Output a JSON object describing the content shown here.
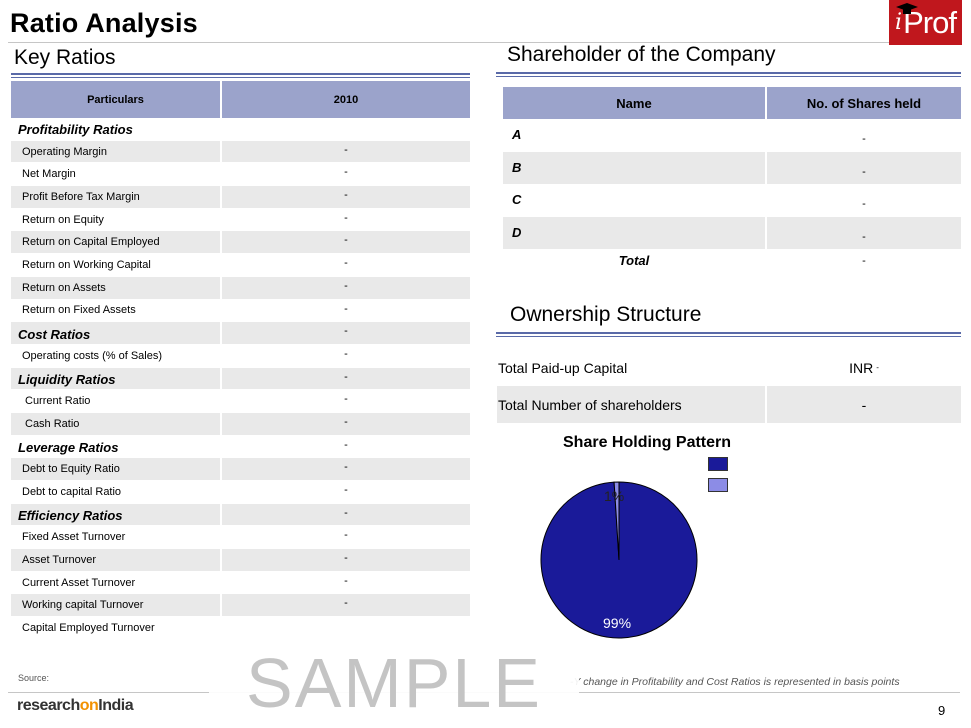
{
  "page": {
    "title": "Ratio Analysis",
    "logo_i": "i",
    "logo_prof": "Prof",
    "page_number": "9",
    "source_label": "Source:",
    "footnote": "-Y change in Profitability and Cost Ratios is represented in basis points",
    "sample_watermark": "SAMPLE",
    "brand_research": "research",
    "brand_on": "on",
    "brand_india": "India"
  },
  "key_ratios": {
    "section_title": "Key Ratios",
    "col_particulars": "Particulars",
    "col_year": "2010",
    "rows": [
      {
        "label": "Profitability Ratios",
        "value": "",
        "type": "cat"
      },
      {
        "label": "Operating Margin",
        "value": "-",
        "type": "item"
      },
      {
        "label": "Net Margin",
        "value": "-",
        "type": "item"
      },
      {
        "label": "Profit Before Tax Margin",
        "value": "-",
        "type": "item"
      },
      {
        "label": "Return on Equity",
        "value": "-",
        "type": "item"
      },
      {
        "label": "Return on Capital Employed",
        "value": "-",
        "type": "item"
      },
      {
        "label": "Return on Working Capital",
        "value": "-",
        "type": "item"
      },
      {
        "label": "Return on Assets",
        "value": "-",
        "type": "item"
      },
      {
        "label": "Return on Fixed Assets",
        "value": "-",
        "type": "item"
      },
      {
        "label": "Cost Ratios",
        "value": "-",
        "type": "cat"
      },
      {
        "label": "Operating costs (% of Sales)",
        "value": "-",
        "type": "item"
      },
      {
        "label": "Liquidity Ratios",
        "value": "-",
        "type": "cat"
      },
      {
        "label": "Current Ratio",
        "value": "-",
        "type": "indent"
      },
      {
        "label": "Cash Ratio",
        "value": "-",
        "type": "indent"
      },
      {
        "label": "Leverage Ratios",
        "value": "-",
        "type": "cat"
      },
      {
        "label": "Debt to Equity Ratio",
        "value": "-",
        "type": "item"
      },
      {
        "label": "Debt to capital Ratio",
        "value": "-",
        "type": "item"
      },
      {
        "label": "Efficiency Ratios",
        "value": "-",
        "type": "cat"
      },
      {
        "label": "Fixed Asset Turnover",
        "value": "-",
        "type": "item"
      },
      {
        "label": "Asset Turnover",
        "value": "-",
        "type": "item"
      },
      {
        "label": "Current Asset Turnover",
        "value": "-",
        "type": "item"
      },
      {
        "label": "Working capital Turnover",
        "value": "-",
        "type": "item"
      },
      {
        "label": "Capital Employed Turnover",
        "value": "",
        "type": "item"
      }
    ]
  },
  "shareholders": {
    "section_title": "Shareholder of the Company",
    "col_name": "Name",
    "col_shares": "No. of Shares held",
    "rows": [
      {
        "name": "A",
        "shares": "-"
      },
      {
        "name": "B",
        "shares": "-"
      },
      {
        "name": "C",
        "shares": "-"
      },
      {
        "name": "D",
        "shares": "-"
      }
    ],
    "total_label": "Total",
    "total_value": "-"
  },
  "ownership": {
    "section_title": "Ownership Structure",
    "paid_up_label": "Total Paid-up Capital",
    "paid_up_currency": "INR",
    "paid_up_value": "-",
    "num_shareholders_label": "Total Number of shareholders",
    "num_shareholders_value": "-"
  },
  "chart_data": {
    "type": "pie",
    "title": "Share Holding Pattern",
    "slices": [
      {
        "label": "99%",
        "value": 99,
        "color": "#1a1a99"
      },
      {
        "label": "1%",
        "value": 1,
        "color": "#8c8ce6"
      }
    ],
    "legend_entries": [
      "",
      ""
    ],
    "legend_placement": "top-right"
  },
  "colors": {
    "header_fill": "#9ba3cb",
    "row_shade": "#e9e9e9",
    "rule_blue": "#5a6aa8",
    "logo_red": "#c0171d"
  }
}
